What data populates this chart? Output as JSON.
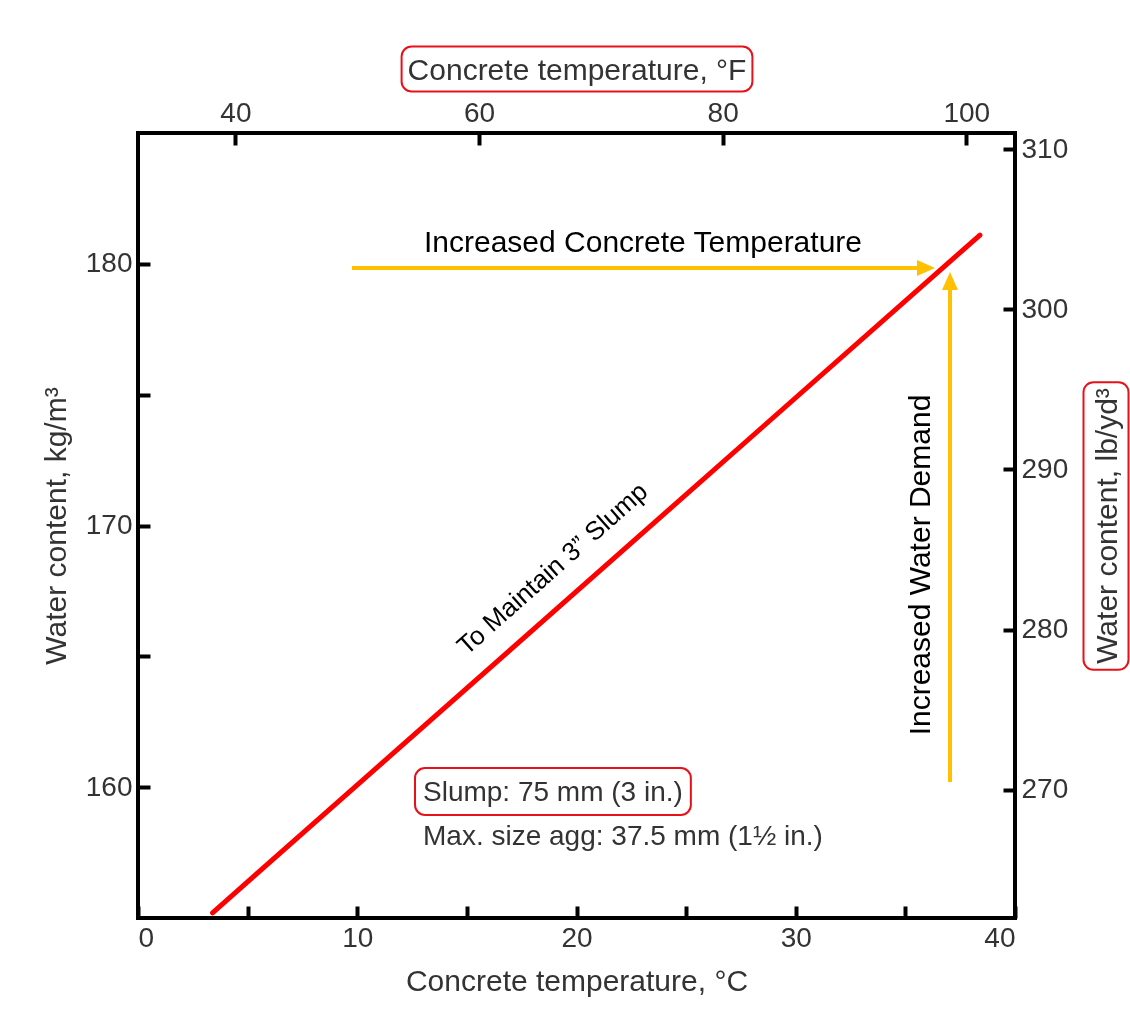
{
  "chart_data": {
    "type": "line",
    "xlabel": "Concrete temperature, °C",
    "ylabel": "Water content, kg/m³",
    "x2label": "Concrete temperature, °F",
    "y2label": "Water content, lb/yd³",
    "x": [
      3.4,
      38.4
    ],
    "series": [
      {
        "color": "#ff0000",
        "values": [
          155.2,
          181.1
        ]
      }
    ],
    "xlim": [
      0,
      40
    ],
    "xticks": [
      0,
      {
        "value": 5,
        "label": null
      },
      10,
      {
        "value": 15,
        "label": null
      },
      20,
      {
        "value": 25,
        "label": null
      },
      30,
      {
        "value": 35,
        "label": null
      },
      40
    ],
    "ylim": [
      155,
      185
    ],
    "yticks": [
      160,
      {
        "value": 165,
        "label": null
      },
      170,
      {
        "value": 175,
        "label": null
      },
      180
    ],
    "x2lim": [
      32,
      104
    ],
    "x2ticks": [
      40,
      60,
      80,
      100
    ],
    "y2lim": [
      262,
      311
    ],
    "y2ticks": [
      270,
      280,
      290,
      300,
      310
    ],
    "annotations": [
      "Increased Concrete Temperature",
      "Increased Water Demand",
      "To Maintain 3” Slump",
      "Slump: 75 mm (3 in.)",
      "Max. size agg: 37.5 mm (1½ in.)"
    ]
  }
}
